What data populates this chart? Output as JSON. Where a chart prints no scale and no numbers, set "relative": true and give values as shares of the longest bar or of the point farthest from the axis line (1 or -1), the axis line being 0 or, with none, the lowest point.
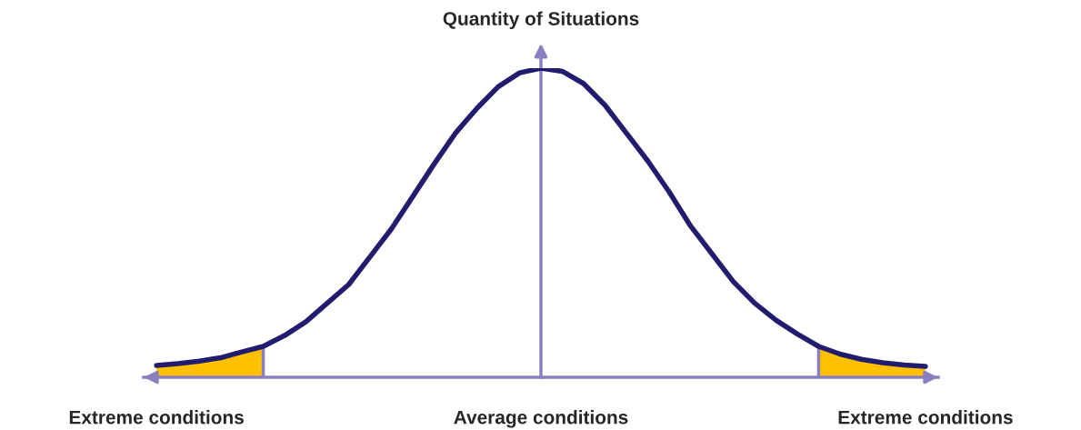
{
  "chart_data": {
    "type": "line",
    "relative": true,
    "ylabel": "Quantity of Situations",
    "categories": [
      "Extreme conditions",
      null,
      null,
      null,
      null,
      null,
      null,
      null,
      null,
      null,
      null,
      null,
      null,
      null,
      null,
      null,
      null,
      null,
      "Average conditions",
      null,
      null,
      null,
      null,
      null,
      null,
      null,
      null,
      null,
      null,
      null,
      null,
      null,
      null,
      null,
      null,
      null,
      "Extreme conditions"
    ],
    "tick_labels": "x",
    "series": [
      {
        "type": "area",
        "color": "#ffc000",
        "values": [
          0.038,
          0.044,
          0.052,
          0.063,
          0.082,
          0.1,
          null,
          null,
          null,
          null,
          null,
          null,
          null,
          null,
          null,
          null,
          null,
          null,
          null,
          null,
          null,
          null,
          null,
          null,
          null,
          null,
          null,
          null,
          null,
          null,
          null,
          null,
          null,
          null,
          null,
          null,
          null
        ]
      },
      {
        "type": "area",
        "color": "#ffc000",
        "values": [
          null,
          null,
          null,
          null,
          null,
          null,
          null,
          null,
          null,
          null,
          null,
          null,
          null,
          null,
          null,
          null,
          null,
          null,
          null,
          null,
          null,
          null,
          null,
          null,
          null,
          null,
          null,
          null,
          null,
          null,
          null,
          0.1,
          0.075,
          0.058,
          0.047,
          0.04,
          0.035
        ]
      },
      {
        "color": "#211c6e",
        "values": [
          0.038,
          0.044,
          0.052,
          0.063,
          0.082,
          0.1,
          0.135,
          0.18,
          0.24,
          0.3,
          0.39,
          0.48,
          0.585,
          0.69,
          0.79,
          0.87,
          0.94,
          0.985,
          1.0,
          0.99,
          0.95,
          0.88,
          0.79,
          0.7,
          0.6,
          0.49,
          0.4,
          0.31,
          0.24,
          0.185,
          0.14,
          0.1,
          0.075,
          0.058,
          0.047,
          0.04,
          0.035
        ]
      }
    ]
  }
}
